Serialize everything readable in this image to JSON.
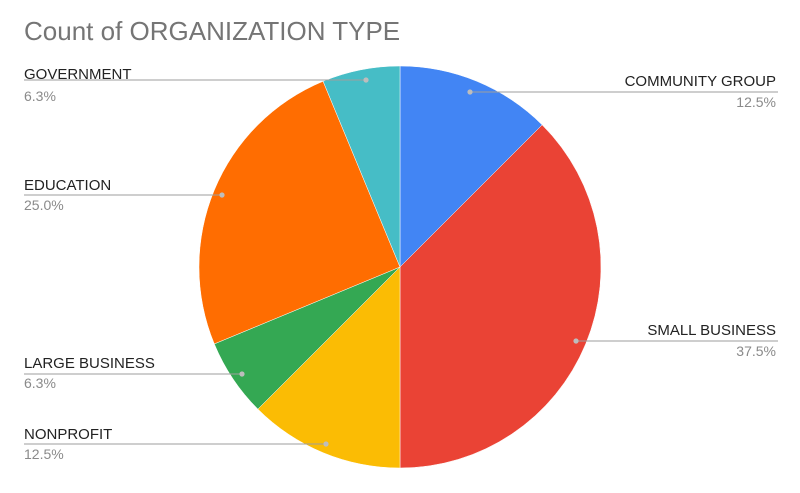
{
  "chart_data": {
    "type": "pie",
    "title": "Count of ORGANIZATION TYPE",
    "slices": [
      {
        "label": "COMMUNITY GROUP",
        "value": 12.5,
        "pct_label": "12.5%",
        "color": "#4285f4"
      },
      {
        "label": "SMALL BUSINESS",
        "value": 37.5,
        "pct_label": "37.5%",
        "color": "#ea4335"
      },
      {
        "label": "NONPROFIT",
        "value": 12.5,
        "pct_label": "12.5%",
        "color": "#fbbc04"
      },
      {
        "label": "LARGE BUSINESS",
        "value": 6.25,
        "pct_label": "6.3%",
        "color": "#34a853"
      },
      {
        "label": "EDUCATION",
        "value": 25.0,
        "pct_label": "25.0%",
        "color": "#ff6d01"
      },
      {
        "label": "GOVERNMENT",
        "value": 6.25,
        "pct_label": "6.3%",
        "color": "#46bdc6"
      }
    ],
    "start_position": "top",
    "direction": "clockwise",
    "legend": "none (labels beside slices)"
  }
}
